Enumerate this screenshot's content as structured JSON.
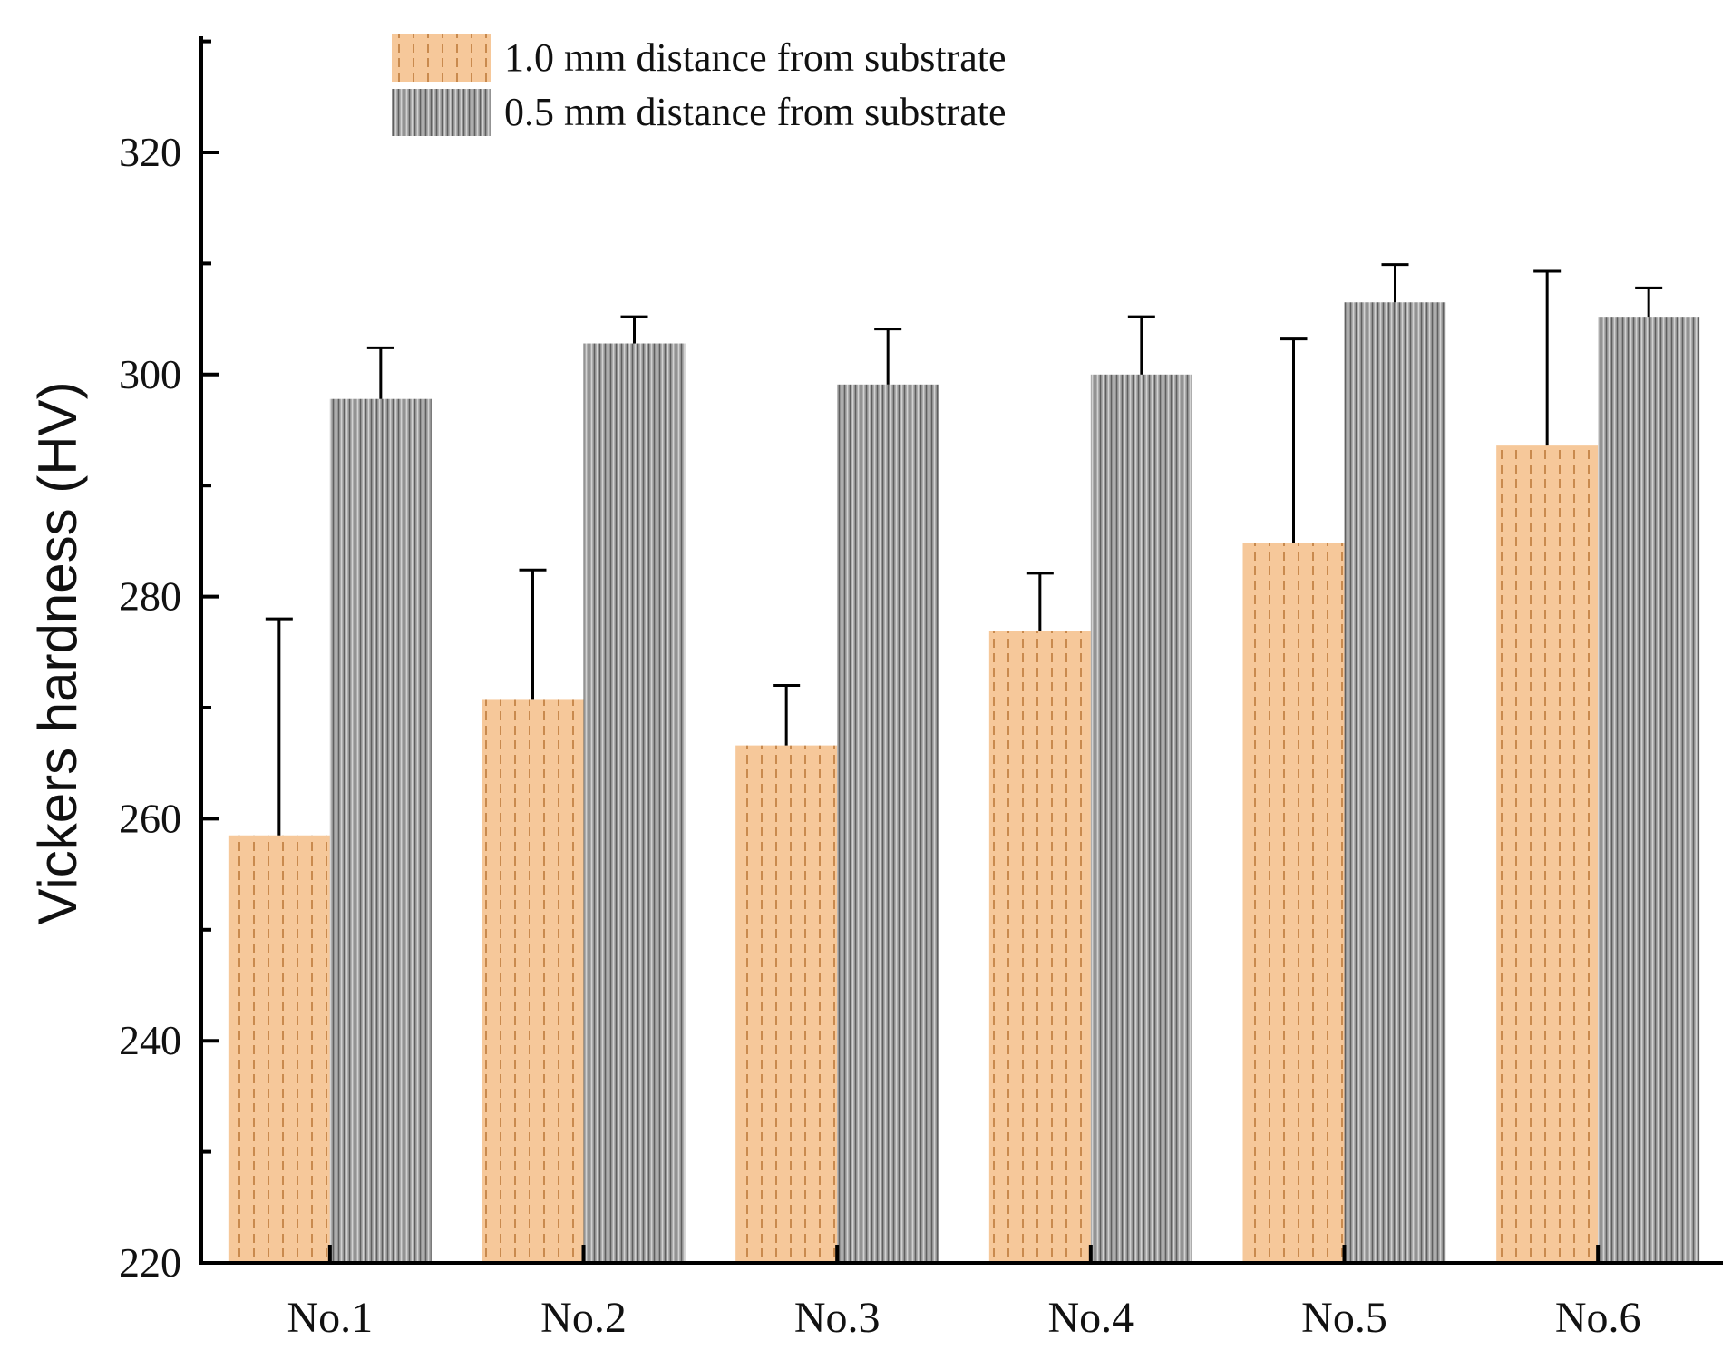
{
  "chart_data": {
    "type": "bar",
    "title": "",
    "xlabel": "",
    "ylabel": "Vickers hardness (HV)",
    "ylim": [
      220,
      330
    ],
    "yticks": [
      220,
      240,
      260,
      280,
      300,
      320
    ],
    "categories": [
      "No.1",
      "No.2",
      "No.3",
      "No.4",
      "No.5",
      "No.6"
    ],
    "series": [
      {
        "name": "1.0 mm distance from substrate",
        "color": "#f6c89a",
        "pattern": "orange-dashed-stripes",
        "values": [
          258.5,
          270.7,
          266.6,
          276.9,
          284.8,
          293.6
        ],
        "error_upper": [
          278.0,
          282.4,
          272.0,
          282.1,
          303.2,
          309.3
        ]
      },
      {
        "name": "0.5 mm distance from substrate",
        "color": "#9a9a9a",
        "pattern": "gray-vertical-stripes",
        "values": [
          297.8,
          302.8,
          299.1,
          300.0,
          306.5,
          305.2
        ],
        "error_upper": [
          302.4,
          305.2,
          304.1,
          305.2,
          309.9,
          307.8
        ]
      }
    ],
    "legend_position": "top"
  }
}
